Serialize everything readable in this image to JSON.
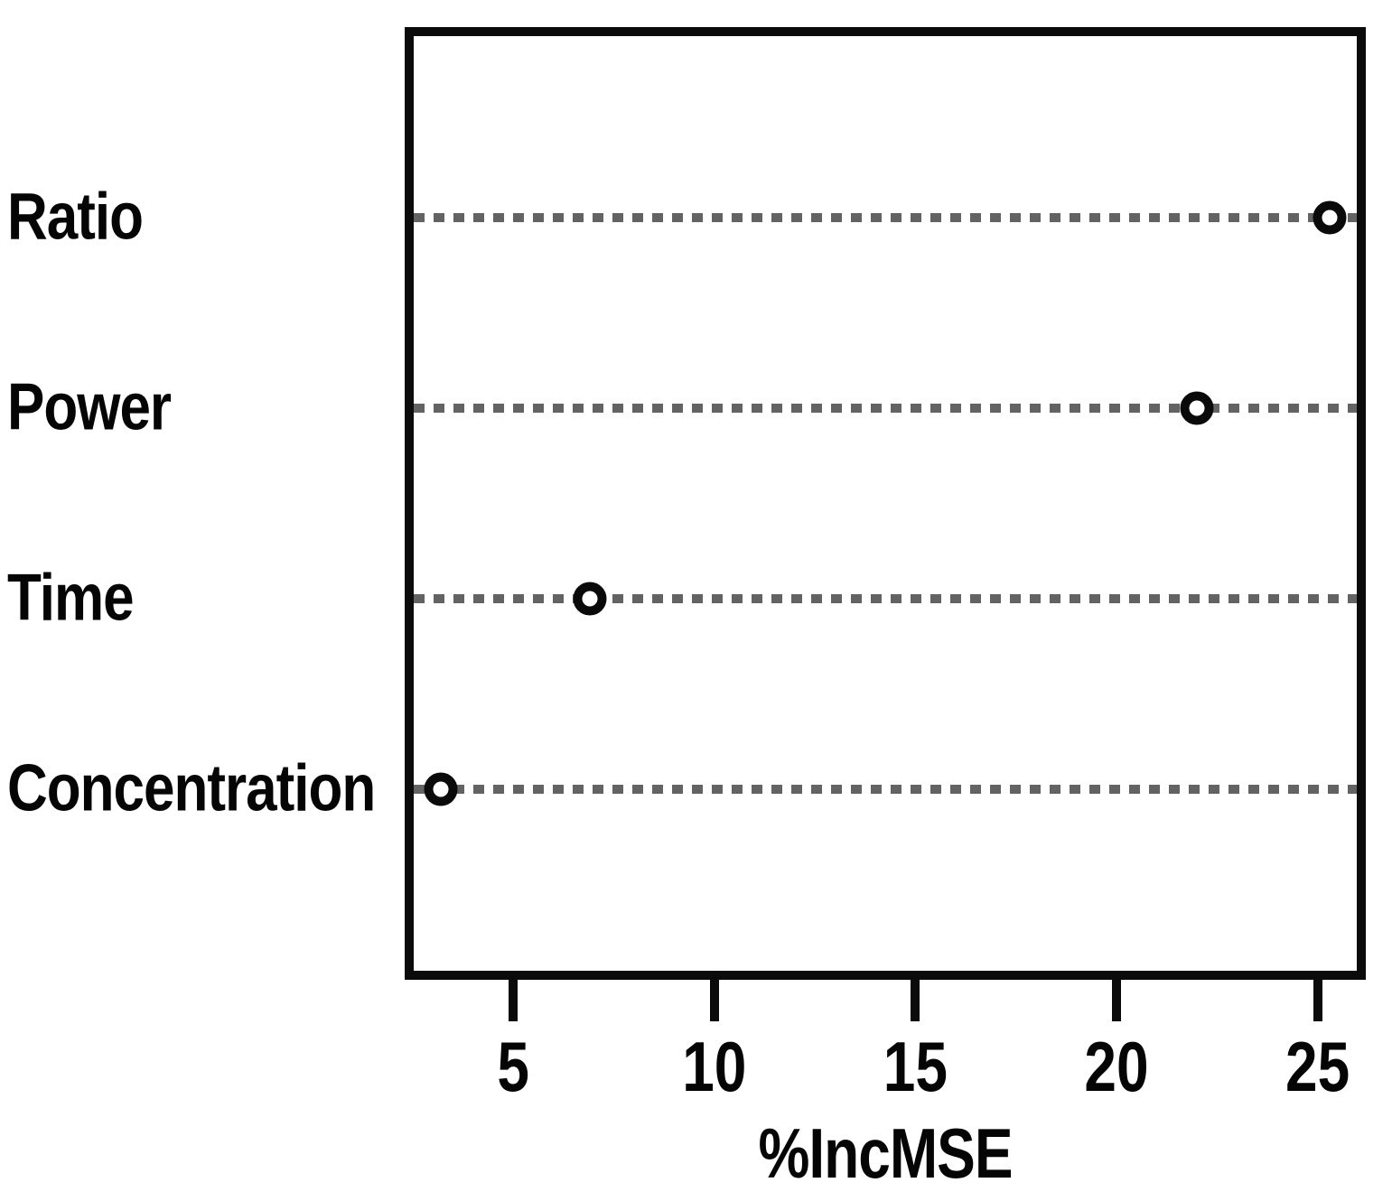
{
  "chart_data": {
    "type": "scatter",
    "subtype": "dotchart-variable-importance",
    "title": "",
    "xlabel": "%IncMSE",
    "ylabel": "",
    "categories": [
      "Ratio",
      "Power",
      "Time",
      "Concentration"
    ],
    "values": [
      25.3,
      22.0,
      6.9,
      3.2
    ],
    "xticks": [
      5,
      10,
      15,
      20,
      25
    ],
    "xlim": [
      2.3,
      26.2
    ],
    "grid": "dotted horizontal guide line per category",
    "legend": "none",
    "marker": "open-circle",
    "colors": {
      "background": "#ffffff",
      "frame": "#0b0b0b",
      "text": "#050505",
      "guide_line": "#636363",
      "marker_stroke": "#0a0a0a",
      "marker_fill": "#ffffff"
    }
  }
}
